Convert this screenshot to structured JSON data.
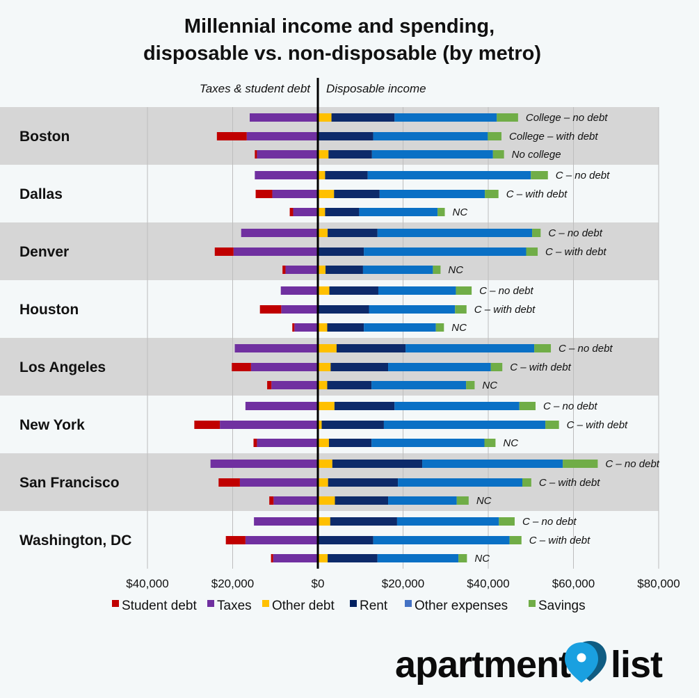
{
  "chart_data": {
    "type": "bar",
    "orientation": "horizontal-diverging",
    "title": [
      "Millennial income and spending,",
      "disposable vs. non-disposable (by metro)"
    ],
    "left_header": "Taxes & student debt",
    "right_header": "Disposable income",
    "xlim": [
      -80000,
      80000
    ],
    "x_ticks": [
      -40000,
      -20000,
      0,
      20000,
      40000,
      60000,
      80000
    ],
    "x_tick_labels": [
      "$40,000",
      "$20,000",
      "$0",
      "$20,000",
      "$40,000",
      "$60,000",
      "$80,000"
    ],
    "grid": true,
    "legend_position": "bottom",
    "legend": [
      {
        "name": "Student debt",
        "color": "#c00000"
      },
      {
        "name": "Taxes",
        "color": "#7030a0"
      },
      {
        "name": "Other debt",
        "color": "#ffc000"
      },
      {
        "name": "Rent",
        "color": "#002060"
      },
      {
        "name": "Other expenses",
        "color": "#4472c4"
      },
      {
        "name": "Savings",
        "color": "#70ad47"
      }
    ],
    "series_colors": {
      "student_debt": "#c00000",
      "taxes": "#7030a0",
      "other_debt": "#ffc000",
      "rent": "#0d2a6a",
      "other_expenses": "#0a70c5",
      "savings": "#70ad47"
    },
    "metros": [
      {
        "name": "Boston",
        "shaded": true,
        "rows": [
          {
            "label": "College – no debt",
            "student_debt": 0,
            "taxes": 16000,
            "other_debt": 3200,
            "rent": 14800,
            "other_expenses": 24000,
            "savings": 5000
          },
          {
            "label": "College – with debt",
            "student_debt": 7000,
            "taxes": 16700,
            "other_debt": 0,
            "rent": 13000,
            "other_expenses": 26900,
            "savings": 3200
          },
          {
            "label": "No college",
            "student_debt": 500,
            "taxes": 14300,
            "other_debt": 2500,
            "rent": 10200,
            "other_expenses": 28400,
            "savings": 2600
          }
        ]
      },
      {
        "name": "Dallas",
        "shaded": false,
        "rows": [
          {
            "label": "C – no debt",
            "student_debt": 0,
            "taxes": 14800,
            "other_debt": 1700,
            "rent": 10000,
            "other_expenses": 38300,
            "savings": 4000
          },
          {
            "label": "C – with debt",
            "student_debt": 3900,
            "taxes": 10700,
            "other_debt": 3800,
            "rent": 10700,
            "other_expenses": 24700,
            "savings": 3200
          },
          {
            "label": "NC",
            "student_debt": 800,
            "taxes": 5800,
            "other_debt": 1700,
            "rent": 8000,
            "other_expenses": 18400,
            "savings": 1700
          }
        ]
      },
      {
        "name": "Denver",
        "shaded": true,
        "rows": [
          {
            "label": "C – no debt",
            "student_debt": 0,
            "taxes": 18000,
            "other_debt": 2300,
            "rent": 11700,
            "other_expenses": 36300,
            "savings": 2000
          },
          {
            "label": "C – with debt",
            "student_debt": 4400,
            "taxes": 19800,
            "other_debt": 0,
            "rent": 10800,
            "other_expenses": 38100,
            "savings": 2700
          },
          {
            "label": "NC",
            "student_debt": 700,
            "taxes": 7600,
            "other_debt": 1800,
            "rent": 8800,
            "other_expenses": 16400,
            "savings": 1800
          }
        ]
      },
      {
        "name": "Houston",
        "shaded": false,
        "rows": [
          {
            "label": "C – no debt",
            "student_debt": 0,
            "taxes": 8700,
            "other_debt": 2700,
            "rent": 11500,
            "other_expenses": 18200,
            "savings": 3700
          },
          {
            "label": "C – with debt",
            "student_debt": 5000,
            "taxes": 8600,
            "other_debt": 0,
            "rent": 12000,
            "other_expenses": 20200,
            "savings": 2700
          },
          {
            "label": "NC",
            "student_debt": 500,
            "taxes": 5500,
            "other_debt": 2200,
            "rent": 8600,
            "other_expenses": 16900,
            "savings": 1900
          }
        ]
      },
      {
        "name": "Los Angeles",
        "shaded": true,
        "rows": [
          {
            "label": "C – no debt",
            "student_debt": 0,
            "taxes": 19500,
            "other_debt": 4400,
            "rent": 16200,
            "other_expenses": 30200,
            "savings": 3900
          },
          {
            "label": "C – with debt",
            "student_debt": 4500,
            "taxes": 15700,
            "other_debt": 3000,
            "rent": 13500,
            "other_expenses": 24100,
            "savings": 2700
          },
          {
            "label": "NC",
            "student_debt": 1000,
            "taxes": 10900,
            "other_debt": 2200,
            "rent": 10400,
            "other_expenses": 22200,
            "savings": 2000
          }
        ]
      },
      {
        "name": "New York",
        "shaded": false,
        "rows": [
          {
            "label": "C – no debt",
            "student_debt": 0,
            "taxes": 17000,
            "other_debt": 3900,
            "rent": 14100,
            "other_expenses": 29300,
            "savings": 3800
          },
          {
            "label": "C – with debt",
            "student_debt": 6000,
            "taxes": 23000,
            "other_debt": 900,
            "rent": 14600,
            "other_expenses": 37900,
            "savings": 3200
          },
          {
            "label": "NC",
            "student_debt": 800,
            "taxes": 14300,
            "other_debt": 2600,
            "rent": 10000,
            "other_expenses": 26500,
            "savings": 2600
          }
        ]
      },
      {
        "name": "San Francisco",
        "shaded": true,
        "rows": [
          {
            "label": "C – no debt",
            "student_debt": 0,
            "taxes": 25200,
            "other_debt": 3400,
            "rent": 21100,
            "other_expenses": 33000,
            "savings": 8200
          },
          {
            "label": "C – with debt",
            "student_debt": 5000,
            "taxes": 18300,
            "other_debt": 2400,
            "rent": 16400,
            "other_expenses": 29200,
            "savings": 2100
          },
          {
            "label": "NC",
            "student_debt": 1000,
            "taxes": 10400,
            "other_debt": 4000,
            "rent": 12500,
            "other_expenses": 16100,
            "savings": 2800
          }
        ]
      },
      {
        "name": "Washington, DC",
        "shaded": false,
        "rows": [
          {
            "label": "C – no debt",
            "student_debt": 0,
            "taxes": 15000,
            "other_debt": 2900,
            "rent": 15700,
            "other_expenses": 23900,
            "savings": 3700
          },
          {
            "label": "C – with debt",
            "student_debt": 4600,
            "taxes": 17000,
            "other_debt": 0,
            "rent": 13000,
            "other_expenses": 32000,
            "savings": 2800
          },
          {
            "label": "NC",
            "student_debt": 500,
            "taxes": 10500,
            "other_debt": 2300,
            "rent": 11700,
            "other_expenses": 19000,
            "savings": 2000
          }
        ]
      }
    ]
  },
  "branding": {
    "logo_text_left": "apartment",
    "logo_text_right": "list",
    "pin_color": "#1aa0e0",
    "pin_dark_color": "#0f5c82"
  }
}
